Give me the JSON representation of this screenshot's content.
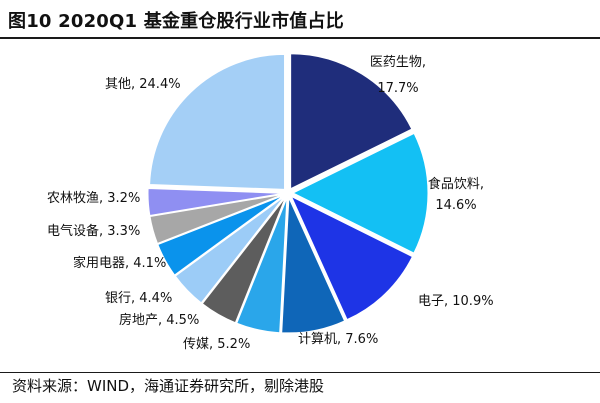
{
  "figure": {
    "title": "图10 2020Q1 基金重仓股行业市值占比",
    "source": "资料来源：WIND，海通证券研究所，剔除港股"
  },
  "chart_data": {
    "type": "pie",
    "title": "图10 2020Q1 基金重仓股行业市值占比",
    "value_unit": "%",
    "start_angle": "12 o'clock",
    "direction": "clockwise",
    "slices": [
      {
        "name": "医药生物",
        "value": 17.7,
        "label": "医药生物,",
        "value_label": "17.7%",
        "color": "#1f2d7b"
      },
      {
        "name": "食品饮料",
        "value": 14.6,
        "label": "食品饮料,",
        "value_label": "14.6%",
        "color": "#13c0f4"
      },
      {
        "name": "电子",
        "value": 10.9,
        "label": "电子, 10.9%",
        "value_label": "",
        "color": "#1e34e6"
      },
      {
        "name": "计算机",
        "value": 7.6,
        "label": "计算机, 7.6%",
        "value_label": "",
        "color": "#0f66b8"
      },
      {
        "name": "传媒",
        "value": 5.2,
        "label": "传媒, 5.2%",
        "value_label": "",
        "color": "#2aa6ea"
      },
      {
        "name": "房地产",
        "value": 4.5,
        "label": "房地产, 4.5%",
        "value_label": "",
        "color": "#5d5d5d"
      },
      {
        "name": "银行",
        "value": 4.4,
        "label": "银行, 4.4%",
        "value_label": "",
        "color": "#9cccf7"
      },
      {
        "name": "家用电器",
        "value": 4.1,
        "label": "家用电器, 4.1%",
        "value_label": "",
        "color": "#0a93ec"
      },
      {
        "name": "电气设备",
        "value": 3.3,
        "label": "电气设备, 3.3%",
        "value_label": "",
        "color": "#a7a7a7"
      },
      {
        "name": "农林牧渔",
        "value": 3.2,
        "label": "农林牧渔, 3.2%",
        "value_label": "",
        "color": "#8f8ff2"
      },
      {
        "name": "其他",
        "value": 24.4,
        "label": "其他, 24.4%",
        "value_label": "",
        "color": "#a4cff6"
      }
    ]
  }
}
